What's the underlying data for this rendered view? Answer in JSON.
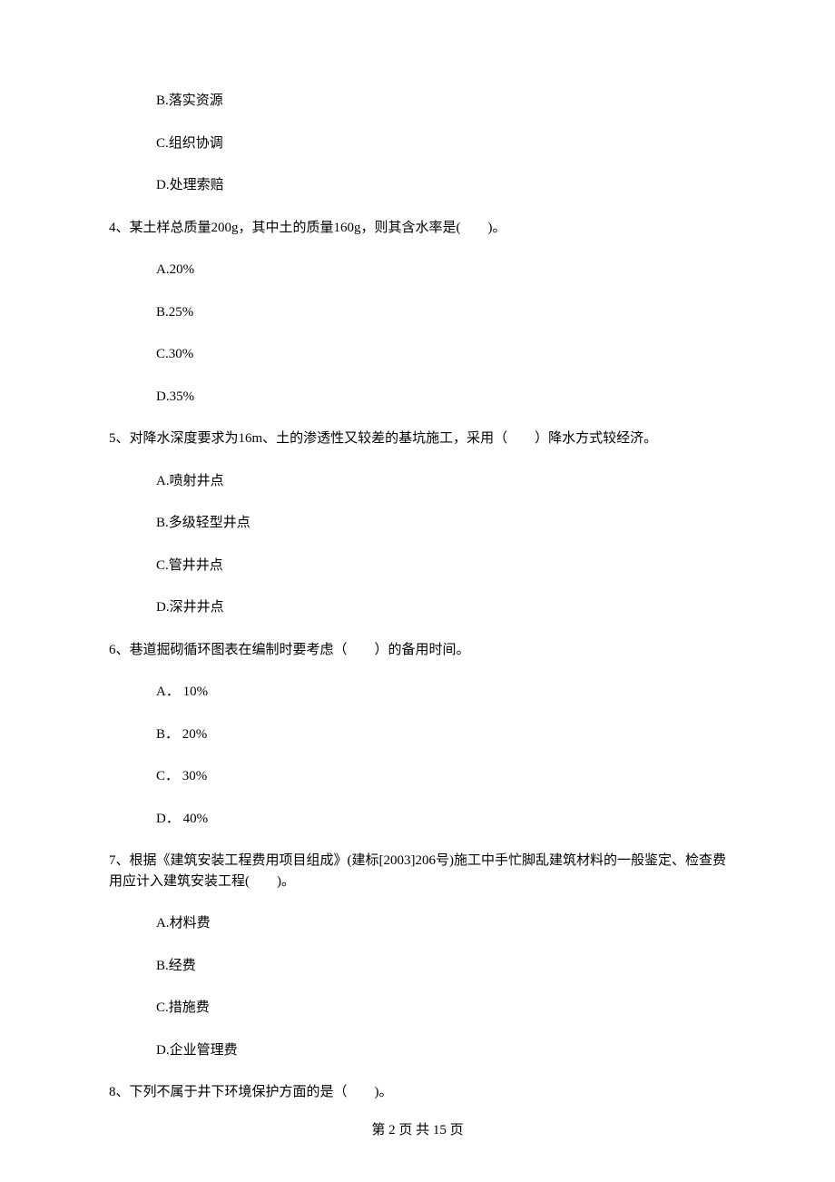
{
  "text_color": "#000000",
  "background_color": "#ffffff",
  "font_family": "SimSun",
  "font_size_pt": 12,
  "line_height": 1.5,
  "options_prev": {
    "b": "B.落实资源",
    "c": "C.组织协调",
    "d": "D.处理索赔"
  },
  "q4": {
    "stem": "4、某土样总质量200g，其中土的质量160g，则其含水率是(　　)。",
    "a": "A.20%",
    "b": "B.25%",
    "c": "C.30%",
    "d": "D.35%"
  },
  "q5": {
    "stem": "5、对降水深度要求为16m、土的渗透性又较差的基坑施工，采用（　　）降水方式较经济。",
    "a": "A.喷射井点",
    "b": "B.多级轻型井点",
    "c": "C.管井井点",
    "d": "D.深井井点"
  },
  "q6": {
    "stem": "6、巷道掘砌循环图表在编制时要考虑（　　）的备用时间。",
    "a": "A． 10%",
    "b": "B． 20%",
    "c": "C． 30%",
    "d": "D． 40%"
  },
  "q7": {
    "stem": "7、根据《建筑安装工程费用项目组成》(建标[2003]206号)施工中手忙脚乱建筑材料的一般鉴定、检查费用应计入建筑安装工程(　　)。",
    "a": "A.材料费",
    "b": "B.经费",
    "c": "C.措施费",
    "d": "D.企业管理费"
  },
  "q8": {
    "stem": "8、下列不属于井下环境保护方面的是（　　)。"
  },
  "footer": "第 2 页 共 15 页"
}
